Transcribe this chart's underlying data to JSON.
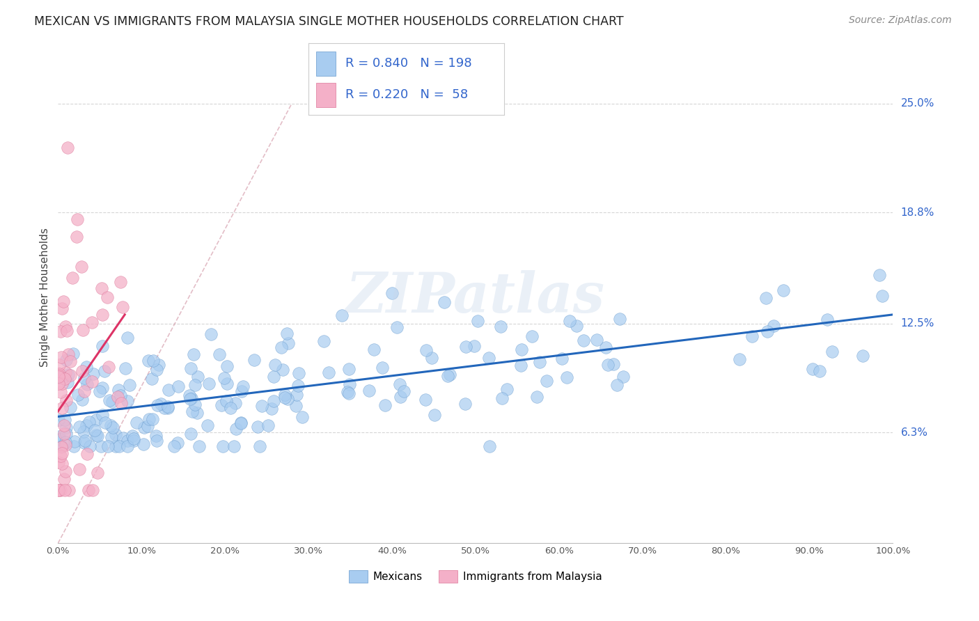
{
  "title": "MEXICAN VS IMMIGRANTS FROM MALAYSIA SINGLE MOTHER HOUSEHOLDS CORRELATION CHART",
  "source": "Source: ZipAtlas.com",
  "ylabel": "Single Mother Households",
  "watermark": "ZIPatlas",
  "x_min": 0.0,
  "x_max": 100.0,
  "y_min": 0.0,
  "y_max": 28.0,
  "y_ticks": [
    6.3,
    12.5,
    18.8,
    25.0
  ],
  "blue_R": 0.84,
  "blue_N": 198,
  "pink_R": 0.22,
  "pink_N": 58,
  "blue_color": "#a8ccf0",
  "pink_color": "#f4b0c8",
  "blue_edge": "#6699cc",
  "pink_edge": "#dd7799",
  "trend_blue": "#2266bb",
  "trend_pink": "#dd3366",
  "diag_color": "#cc8899",
  "legend_text_color": "#3366cc",
  "title_color": "#222222",
  "grid_color": "#cccccc",
  "background": "#ffffff",
  "blue_trend_x0": 0.0,
  "blue_trend_y0": 7.2,
  "blue_trend_x1": 100.0,
  "blue_trend_y1": 13.0,
  "pink_trend_x0": 0.0,
  "pink_trend_y0": 7.5,
  "pink_trend_x1": 8.0,
  "pink_trend_y1": 13.0,
  "diag_x0": 0.0,
  "diag_y0": 0.0,
  "diag_x1": 28.0,
  "diag_y1": 25.0
}
